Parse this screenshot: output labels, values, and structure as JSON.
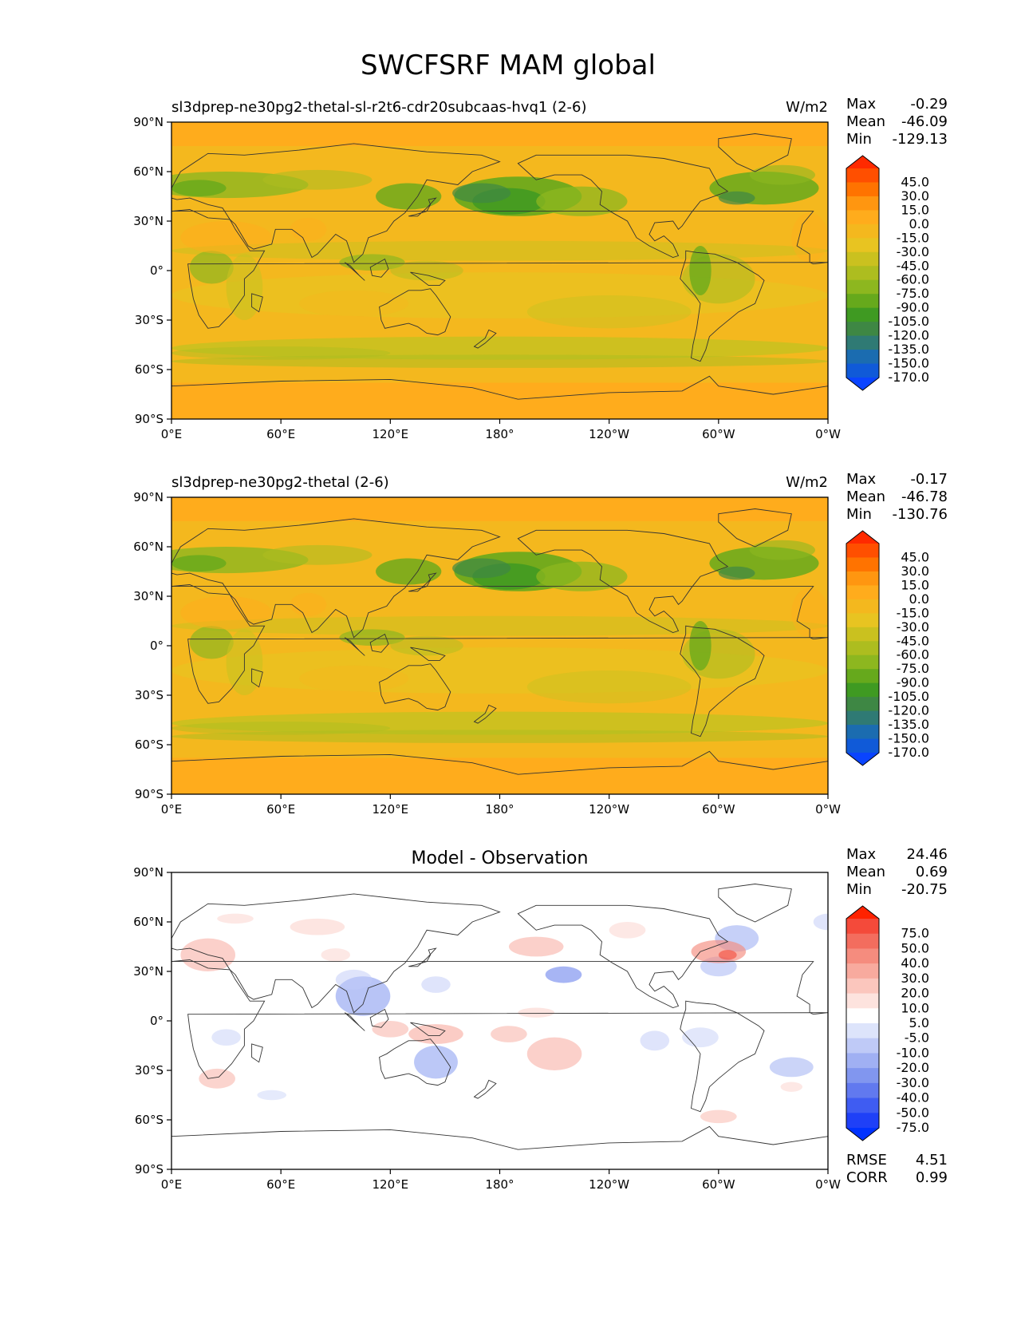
{
  "figure_title": "SWCFSRF MAM global",
  "axes": {
    "lat_ticks": [
      "90°N",
      "60°N",
      "30°N",
      "0°",
      "30°S",
      "60°S",
      "90°S"
    ],
    "lon_ticks": [
      "0°E",
      "60°E",
      "120°E",
      "180°",
      "120°W",
      "60°W",
      "0°W"
    ]
  },
  "panels": [
    {
      "id": "test",
      "left_title": "sl3dprep-ne30pg2-thetal-sl-r2t6-cdr20subcaas-hvq1 (2-6)",
      "center_title": "",
      "units": "W/m2",
      "stats": [
        {
          "label": "Max",
          "value": "-0.29"
        },
        {
          "label": "Mean",
          "value": "-46.09"
        },
        {
          "label": "Min",
          "value": "-129.13"
        }
      ],
      "colorbar": {
        "labels": [
          "45.0",
          "30.0",
          "15.0",
          "0.0",
          "-15.0",
          "-30.0",
          "-45.0",
          "-60.0",
          "-75.0",
          "-90.0",
          "-105.0",
          "-120.0",
          "-135.0",
          "-150.0",
          "-170.0"
        ],
        "colors": [
          "#ff2a00",
          "#ff4f00",
          "#ff7300",
          "#ff9610",
          "#ffac1c",
          "#f4b81e",
          "#e8c421",
          "#cac11f",
          "#adbd1f",
          "#8db71f",
          "#66a91c",
          "#3f9a22",
          "#3e8744",
          "#2f7a74",
          "#1b6cb0",
          "#105ad8",
          "#0a44ff"
        ]
      }
    },
    {
      "id": "reference",
      "left_title": "sl3dprep-ne30pg2-thetal (2-6)",
      "center_title": "",
      "units": "W/m2",
      "stats": [
        {
          "label": "Max",
          "value": "-0.17"
        },
        {
          "label": "Mean",
          "value": "-46.78"
        },
        {
          "label": "Min",
          "value": "-130.76"
        }
      ],
      "colorbar": {
        "labels": [
          "45.0",
          "30.0",
          "15.0",
          "0.0",
          "-15.0",
          "-30.0",
          "-45.0",
          "-60.0",
          "-75.0",
          "-90.0",
          "-105.0",
          "-120.0",
          "-135.0",
          "-150.0",
          "-170.0"
        ],
        "colors": [
          "#ff2a00",
          "#ff4f00",
          "#ff7300",
          "#ff9610",
          "#ffac1c",
          "#f4b81e",
          "#e8c421",
          "#cac11f",
          "#adbd1f",
          "#8db71f",
          "#66a91c",
          "#3f9a22",
          "#3e8744",
          "#2f7a74",
          "#1b6cb0",
          "#105ad8",
          "#0a44ff"
        ]
      }
    },
    {
      "id": "difference",
      "left_title": "",
      "center_title": "Model - Observation",
      "units": "",
      "stats": [
        {
          "label": "Max",
          "value": "24.46"
        },
        {
          "label": "Mean",
          "value": "0.69"
        },
        {
          "label": "Min",
          "value": "-20.75"
        }
      ],
      "extra_stats": [
        {
          "label": "RMSE",
          "value": "4.51"
        },
        {
          "label": "CORR",
          "value": "0.99"
        }
      ],
      "colorbar": {
        "labels": [
          "75.0",
          "50.0",
          "40.0",
          "30.0",
          "20.0",
          "10.0",
          "5.0",
          "-5.0",
          "-10.0",
          "-20.0",
          "-30.0",
          "-40.0",
          "-50.0",
          "-75.0"
        ],
        "colors": [
          "#ff2200",
          "#f44a3a",
          "#f36d5e",
          "#f58c7e",
          "#f8aa9e",
          "#fbc6bd",
          "#fde3de",
          "#ffffff",
          "#dde4fb",
          "#bfcaf7",
          "#a0b0f3",
          "#8196ef",
          "#6179ef",
          "#3f5cf2",
          "#1f40f7",
          "#0032ff"
        ]
      }
    }
  ]
}
